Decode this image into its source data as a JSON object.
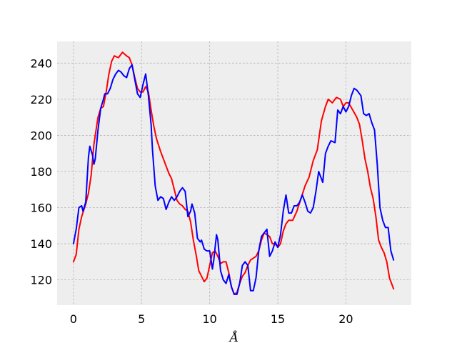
{
  "chart_data": {
    "type": "line",
    "title": "",
    "xlabel": "Å",
    "ylabel": "",
    "xlim": [
      -1.2,
      24.8
    ],
    "ylim": [
      106,
      252
    ],
    "xticks": [
      0,
      5,
      10,
      15,
      20
    ],
    "yticks": [
      120,
      140,
      160,
      180,
      200,
      220,
      240
    ],
    "grid": true,
    "legend": "none",
    "colors": {
      "background": "#eeeeee",
      "grid": "#b0b0b0",
      "series_red": "#ff0000",
      "series_blue": "#0000ff"
    },
    "series": [
      {
        "color": "#ff0000",
        "points": [
          [
            0,
            130
          ],
          [
            0.2,
            134
          ],
          [
            0.4,
            148
          ],
          [
            0.6,
            155
          ],
          [
            0.9,
            162
          ],
          [
            1.1,
            168
          ],
          [
            1.3,
            178
          ],
          [
            1.5,
            195
          ],
          [
            1.8,
            210
          ],
          [
            2.0,
            215
          ],
          [
            2.2,
            216
          ],
          [
            2.4,
            224
          ],
          [
            2.6,
            234
          ],
          [
            2.8,
            241
          ],
          [
            3.0,
            244
          ],
          [
            3.3,
            243
          ],
          [
            3.6,
            246
          ],
          [
            3.9,
            244
          ],
          [
            4.1,
            243
          ],
          [
            4.3,
            239
          ],
          [
            4.5,
            232
          ],
          [
            4.7,
            226
          ],
          [
            4.9,
            224
          ],
          [
            5.1,
            224
          ],
          [
            5.3,
            227
          ],
          [
            5.5,
            224
          ],
          [
            5.7,
            214
          ],
          [
            5.9,
            205
          ],
          [
            6.1,
            198
          ],
          [
            6.4,
            191
          ],
          [
            6.7,
            185
          ],
          [
            7.0,
            179
          ],
          [
            7.2,
            176
          ],
          [
            7.4,
            170
          ],
          [
            7.6,
            164
          ],
          [
            7.8,
            162
          ],
          [
            8.0,
            161
          ],
          [
            8.2,
            159
          ],
          [
            8.4,
            158
          ],
          [
            8.6,
            152
          ],
          [
            8.8,
            142
          ],
          [
            9.0,
            134
          ],
          [
            9.2,
            125
          ],
          [
            9.4,
            122
          ],
          [
            9.6,
            119
          ],
          [
            9.8,
            121
          ],
          [
            10.0,
            128
          ],
          [
            10.2,
            135
          ],
          [
            10.4,
            136
          ],
          [
            10.6,
            133
          ],
          [
            10.8,
            129
          ],
          [
            11.0,
            130
          ],
          [
            11.2,
            130
          ],
          [
            11.4,
            124
          ],
          [
            11.6,
            116
          ],
          [
            11.8,
            112
          ],
          [
            12.0,
            113
          ],
          [
            12.2,
            118
          ],
          [
            12.4,
            122
          ],
          [
            12.6,
            124
          ],
          [
            12.8,
            128
          ],
          [
            13.0,
            131
          ],
          [
            13.2,
            132
          ],
          [
            13.4,
            133
          ],
          [
            13.6,
            136
          ],
          [
            13.8,
            142
          ],
          [
            14.0,
            146
          ],
          [
            14.2,
            145
          ],
          [
            14.4,
            144
          ],
          [
            14.6,
            140
          ],
          [
            14.8,
            140
          ],
          [
            15.0,
            138
          ],
          [
            15.2,
            140
          ],
          [
            15.4,
            147
          ],
          [
            15.6,
            151
          ],
          [
            15.8,
            153
          ],
          [
            16.1,
            153
          ],
          [
            16.4,
            158
          ],
          [
            16.7,
            165
          ],
          [
            17.0,
            172
          ],
          [
            17.3,
            177
          ],
          [
            17.6,
            186
          ],
          [
            17.9,
            192
          ],
          [
            18.2,
            208
          ],
          [
            18.5,
            216
          ],
          [
            18.7,
            220
          ],
          [
            19.0,
            218
          ],
          [
            19.3,
            221
          ],
          [
            19.6,
            220
          ],
          [
            19.8,
            216
          ],
          [
            20.0,
            218
          ],
          [
            20.2,
            218
          ],
          [
            20.5,
            214
          ],
          [
            20.8,
            210
          ],
          [
            21.0,
            206
          ],
          [
            21.2,
            197
          ],
          [
            21.4,
            187
          ],
          [
            21.6,
            180
          ],
          [
            21.8,
            171
          ],
          [
            22.0,
            165
          ],
          [
            22.2,
            155
          ],
          [
            22.4,
            142
          ],
          [
            22.6,
            138
          ],
          [
            22.8,
            135
          ],
          [
            23.0,
            130
          ],
          [
            23.2,
            121
          ],
          [
            23.5,
            115
          ]
        ]
      },
      {
        "color": "#0000ff",
        "points": [
          [
            0,
            140
          ],
          [
            0.2,
            148
          ],
          [
            0.4,
            160
          ],
          [
            0.6,
            161
          ],
          [
            0.7,
            158
          ],
          [
            0.9,
            163
          ],
          [
            1.1,
            188
          ],
          [
            1.2,
            194
          ],
          [
            1.4,
            189
          ],
          [
            1.5,
            184
          ],
          [
            1.6,
            187
          ],
          [
            1.8,
            203
          ],
          [
            2.0,
            215
          ],
          [
            2.2,
            220
          ],
          [
            2.3,
            223
          ],
          [
            2.5,
            223
          ],
          [
            2.7,
            226
          ],
          [
            2.9,
            231
          ],
          [
            3.1,
            234
          ],
          [
            3.3,
            236
          ],
          [
            3.5,
            235
          ],
          [
            3.7,
            233
          ],
          [
            3.9,
            232
          ],
          [
            4.1,
            237
          ],
          [
            4.3,
            239
          ],
          [
            4.5,
            231
          ],
          [
            4.7,
            223
          ],
          [
            4.9,
            221
          ],
          [
            5.1,
            228
          ],
          [
            5.3,
            234
          ],
          [
            5.5,
            222
          ],
          [
            5.7,
            206
          ],
          [
            5.8,
            192
          ],
          [
            6.0,
            172
          ],
          [
            6.2,
            164
          ],
          [
            6.4,
            166
          ],
          [
            6.6,
            165
          ],
          [
            6.8,
            159
          ],
          [
            7.0,
            163
          ],
          [
            7.2,
            166
          ],
          [
            7.4,
            164
          ],
          [
            7.6,
            166
          ],
          [
            7.8,
            169
          ],
          [
            8.0,
            171
          ],
          [
            8.2,
            169
          ],
          [
            8.3,
            162
          ],
          [
            8.4,
            155
          ],
          [
            8.6,
            158
          ],
          [
            8.7,
            162
          ],
          [
            8.9,
            157
          ],
          [
            9.1,
            143
          ],
          [
            9.3,
            141
          ],
          [
            9.4,
            142
          ],
          [
            9.6,
            137
          ],
          [
            9.8,
            136
          ],
          [
            10.0,
            136
          ],
          [
            10.2,
            126
          ],
          [
            10.3,
            131
          ],
          [
            10.5,
            145
          ],
          [
            10.6,
            142
          ],
          [
            10.8,
            125
          ],
          [
            11.0,
            120
          ],
          [
            11.2,
            118
          ],
          [
            11.4,
            123
          ],
          [
            11.6,
            116
          ],
          [
            11.8,
            112
          ],
          [
            12.0,
            112
          ],
          [
            12.2,
            118
          ],
          [
            12.4,
            128
          ],
          [
            12.6,
            130
          ],
          [
            12.8,
            128
          ],
          [
            13.0,
            114
          ],
          [
            13.2,
            114
          ],
          [
            13.4,
            121
          ],
          [
            13.6,
            136
          ],
          [
            13.8,
            144
          ],
          [
            14.0,
            146
          ],
          [
            14.2,
            148
          ],
          [
            14.4,
            133
          ],
          [
            14.6,
            136
          ],
          [
            14.8,
            141
          ],
          [
            15.0,
            138
          ],
          [
            15.2,
            145
          ],
          [
            15.4,
            158
          ],
          [
            15.6,
            167
          ],
          [
            15.8,
            157
          ],
          [
            16.0,
            157
          ],
          [
            16.2,
            161
          ],
          [
            16.4,
            161
          ],
          [
            16.6,
            163
          ],
          [
            16.8,
            167
          ],
          [
            17.0,
            163
          ],
          [
            17.2,
            158
          ],
          [
            17.4,
            157
          ],
          [
            17.6,
            160
          ],
          [
            17.8,
            169
          ],
          [
            18.0,
            180
          ],
          [
            18.3,
            174
          ],
          [
            18.5,
            190
          ],
          [
            18.7,
            194
          ],
          [
            18.9,
            197
          ],
          [
            19.2,
            196
          ],
          [
            19.4,
            214
          ],
          [
            19.6,
            212
          ],
          [
            19.8,
            216
          ],
          [
            20.0,
            213
          ],
          [
            20.2,
            216
          ],
          [
            20.4,
            222
          ],
          [
            20.6,
            226
          ],
          [
            20.8,
            225
          ],
          [
            21.1,
            222
          ],
          [
            21.3,
            212
          ],
          [
            21.5,
            211
          ],
          [
            21.7,
            212
          ],
          [
            21.9,
            207
          ],
          [
            22.1,
            203
          ],
          [
            22.3,
            184
          ],
          [
            22.5,
            160
          ],
          [
            22.7,
            153
          ],
          [
            22.9,
            149
          ],
          [
            23.1,
            149
          ],
          [
            23.3,
            136
          ],
          [
            23.5,
            131
          ]
        ]
      }
    ]
  }
}
